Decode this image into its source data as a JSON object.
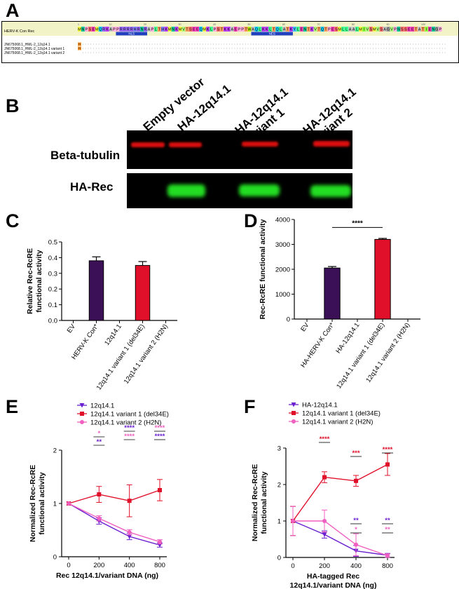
{
  "panels": {
    "a": "A",
    "b": "B",
    "c": "C",
    "d": "D",
    "e": "E",
    "f": "F"
  },
  "panel_a": {
    "consensus_name": "HERV-K Con Rec",
    "consensus_seq": "MNPSEMQRKAPPRRRRHRNRAPLTHKMNKMVTSEEQMKLPSTKKAEPPTWAQLKKLTQLATKYLENTKVTQTPESMLLAALMIVSMVSAGVPNSSEETATIENGP",
    "variants": [
      "JN675068.1_HML-2_12q14.1",
      "JN675068.1_HML-2_12q14.1 variant 1",
      "JN675068.1_HML-2_12q14.1 variant 2"
    ],
    "variant_mark": "H",
    "nls_label": "NLS",
    "nes_label": "NES",
    "ruler": [
      "1",
      "10",
      "20",
      "30",
      "40",
      "50",
      "60",
      "70",
      "80",
      "90",
      "100"
    ]
  },
  "panel_b": {
    "lanes": [
      "Empty vector",
      "HA-12q14.1",
      "HA-12q14.1\nvariant 1",
      "HA-12q14.1\nvariant 2"
    ],
    "rows": [
      "Beta-tubulin",
      "HA-Rec"
    ],
    "colors": {
      "tubulin": "#e01010",
      "ha": "#22dd22"
    }
  },
  "chart_data": [
    {
      "id": "C",
      "type": "bar",
      "categories": [
        "EV",
        "HERV-K Con*",
        "12q14.1",
        "12q14.1 variant 1 (del34E)",
        "12q14.1 variant 2 (H2N)"
      ],
      "values": [
        0,
        0.38,
        0,
        0.35,
        0
      ],
      "errors": [
        0,
        0.025,
        0,
        0.025,
        0
      ],
      "colors": [
        "#3b1057",
        "#3b1057",
        "#3b1057",
        "#e0102a",
        "#e0102a"
      ],
      "ylabel": "Relative Rec-RcRE\nfunctional activity",
      "ylim": [
        0,
        0.5
      ],
      "yticks": [
        "0.0",
        "0.1",
        "0.2",
        "0.3",
        "0.4",
        "0.5"
      ]
    },
    {
      "id": "D",
      "type": "bar",
      "categories": [
        "EV",
        "HA-HERV-K Con*",
        "HA-12q14.1",
        "12q14.1 variant 1 (del34E)",
        "12q14.1 variant 2 (H2N)"
      ],
      "values": [
        0,
        2050,
        0,
        3200,
        0
      ],
      "errors": [
        0,
        60,
        0,
        40,
        0
      ],
      "colors": [
        "#3b1057",
        "#3b1057",
        "#3b1057",
        "#e0102a",
        "#e0102a"
      ],
      "ylabel": "Rec-RcRE functional activity",
      "ylim": [
        0,
        4000
      ],
      "yticks": [
        "0",
        "1000",
        "2000",
        "3000",
        "4000"
      ],
      "significance": "****"
    },
    {
      "id": "E",
      "type": "line",
      "x": [
        "0",
        "200",
        "400",
        "800"
      ],
      "xlabel": "Rec 12q14.1/variant DNA (ng)",
      "ylabel": "Normalized Rec-RcRE\nfunctional activity",
      "ylim": [
        0,
        2
      ],
      "yticks": [
        "0",
        "1",
        "2"
      ],
      "series": [
        {
          "name": "12q14.1",
          "color": "#6a1fd0",
          "marker": "triangle",
          "values": [
            1,
            0.67,
            0.38,
            0.22
          ],
          "errors": [
            0,
            0.06,
            0.06,
            0.04
          ]
        },
        {
          "name": "12q14.1 variant 1 (del34E)",
          "color": "#e0102a",
          "marker": "square",
          "values": [
            1,
            1.17,
            1.05,
            1.25
          ],
          "errors": [
            0,
            0.15,
            0.3,
            0.2
          ]
        },
        {
          "name": "12q14.1 variant 2 (H2N)",
          "color": "#f060c0",
          "marker": "circle",
          "values": [
            1,
            0.72,
            0.46,
            0.28
          ],
          "errors": [
            0,
            0.05,
            0.05,
            0.04
          ]
        }
      ],
      "annotations": [
        {
          "x": 1,
          "lines": [
            {
              "text": "*",
              "color": "#f060c0"
            },
            {
              "text": "**",
              "color": "#6a1fd0"
            }
          ]
        },
        {
          "x": 2,
          "lines": [
            {
              "text": "****",
              "color": "#6a1fd0"
            },
            {
              "text": "****",
              "color": "#f060c0"
            }
          ]
        },
        {
          "x": 3,
          "lines": [
            {
              "text": "****",
              "color": "#f060c0"
            },
            {
              "text": "****",
              "color": "#6a1fd0"
            }
          ]
        }
      ]
    },
    {
      "id": "F",
      "type": "line",
      "x": [
        "0",
        "200",
        "400",
        "800"
      ],
      "xlabel": "HA-tagged Rec\n12q14.1/variant DNA (ng)",
      "ylabel": "Normalized Rec-RcRE\nfunctional activity",
      "ylim": [
        0,
        3
      ],
      "yticks": [
        "0",
        "1",
        "2",
        "3"
      ],
      "series": [
        {
          "name": "HA-12q14.1",
          "color": "#6a1fd0",
          "marker": "triangle",
          "values": [
            1,
            0.63,
            0.18,
            0.06
          ],
          "errors": [
            0.4,
            0.1,
            0.15,
            0.05
          ]
        },
        {
          "name": "12q14.1 variant 1 (del34E)",
          "color": "#e0102a",
          "marker": "square",
          "values": [
            1,
            2.2,
            2.1,
            2.55
          ],
          "errors": [
            0.4,
            0.15,
            0.15,
            0.3
          ]
        },
        {
          "name": "12q14.1 variant 2 (H2N)",
          "color": "#f060c0",
          "marker": "circle",
          "values": [
            1,
            1.0,
            0.35,
            0.05
          ],
          "errors": [
            0.4,
            0.3,
            0.3,
            0.05
          ]
        }
      ],
      "annotations": [
        {
          "x": 1,
          "lines": [
            {
              "text": "****",
              "color": "#e0102a"
            }
          ]
        },
        {
          "x": 2,
          "lines": [
            {
              "text": "***",
              "color": "#e0102a"
            }
          ]
        },
        {
          "x": 3,
          "lines": [
            {
              "text": "****",
              "color": "#e0102a"
            }
          ]
        },
        {
          "x": 2,
          "below": true,
          "lines": [
            {
              "text": "**",
              "color": "#6a1fd0"
            },
            {
              "text": "*",
              "color": "#f060c0"
            }
          ]
        },
        {
          "x": 3,
          "below": true,
          "lines": [
            {
              "text": "**",
              "color": "#6a1fd0"
            },
            {
              "text": "**",
              "color": "#f060c0"
            }
          ]
        }
      ]
    }
  ]
}
